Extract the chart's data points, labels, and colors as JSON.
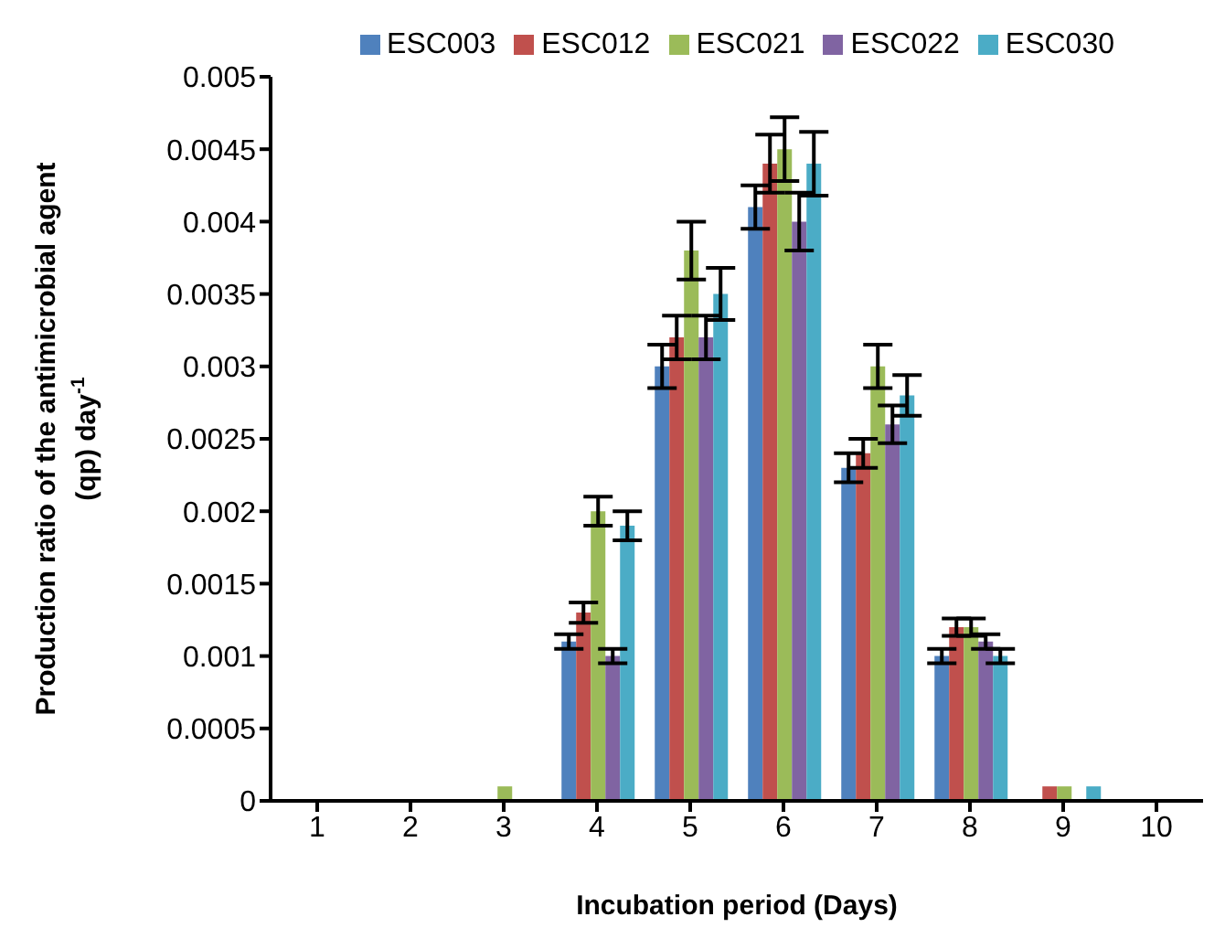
{
  "chart_data": {
    "type": "bar",
    "xlabel": "Incubation period (Days)",
    "ylabel": "Production ratio of the antimicrobial agent (qp) day$^{-1}$",
    "categories": [
      "1",
      "2",
      "3",
      "4",
      "5",
      "6",
      "7",
      "8",
      "9",
      "10"
    ],
    "series": [
      {
        "name": "ESC003",
        "color": "#4f81bd",
        "values": [
          0,
          0,
          0,
          0.0011,
          0.003,
          0.0041,
          0.0023,
          0.001,
          0,
          0
        ],
        "errors": [
          null,
          null,
          null,
          5e-05,
          0.00015,
          0.00015,
          0.0001,
          5e-05,
          null,
          null
        ]
      },
      {
        "name": "ESC012",
        "color": "#c0504d",
        "values": [
          0,
          0,
          0,
          0.0013,
          0.0032,
          0.0044,
          0.0024,
          0.0012,
          0.0001,
          0
        ],
        "errors": [
          null,
          null,
          null,
          7e-05,
          0.00015,
          0.0002,
          0.0001,
          6e-05,
          0,
          null
        ]
      },
      {
        "name": "ESC021",
        "color": "#9bbb59",
        "values": [
          0,
          0,
          0.0001,
          0.002,
          0.0038,
          0.0045,
          0.003,
          0.0012,
          0.0001,
          0
        ],
        "errors": [
          null,
          null,
          0,
          0.0001,
          0.0002,
          0.00022,
          0.00015,
          6e-05,
          0,
          null
        ]
      },
      {
        "name": "ESC022",
        "color": "#8064a2",
        "values": [
          0,
          0,
          0,
          0.001,
          0.0032,
          0.004,
          0.0026,
          0.0011,
          0,
          0
        ],
        "errors": [
          null,
          null,
          null,
          5e-05,
          0.00015,
          0.0002,
          0.00013,
          5e-05,
          null,
          null
        ]
      },
      {
        "name": "ESC030",
        "color": "#4bacc6",
        "values": [
          0,
          0,
          0,
          0.0019,
          0.0035,
          0.0044,
          0.0028,
          0.001,
          0.0001,
          0
        ],
        "errors": [
          null,
          null,
          null,
          0.0001,
          0.00018,
          0.00022,
          0.00014,
          5e-05,
          0,
          null
        ]
      }
    ],
    "ylim": [
      0,
      0.005
    ],
    "yticks": [
      0,
      0.0005,
      0.001,
      0.0015,
      0.002,
      0.0025,
      0.003,
      0.0035,
      0.004,
      0.0045,
      0.005
    ],
    "grid": false,
    "legend": "top"
  }
}
